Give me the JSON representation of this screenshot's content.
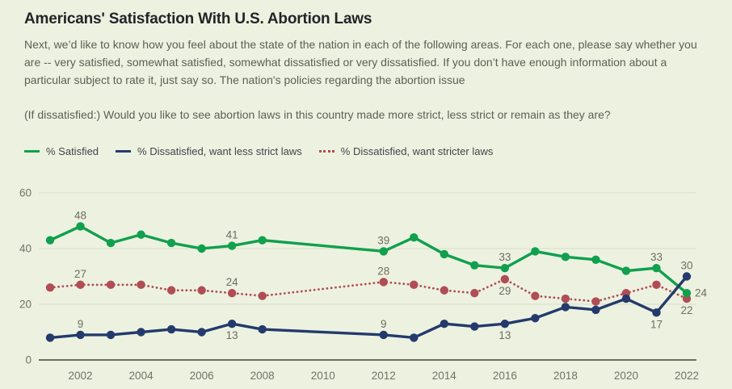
{
  "page": {
    "background": "#edf2e0"
  },
  "header": {
    "title": "Americans' Satisfaction With U.S. Abortion Laws",
    "description": "Next, we’d like to know how you feel about the state of the nation in each of the following areas. For each one, please say whether you are -- very satisfied, somewhat satisfied, somewhat dissatisfied or very dissatisfied. If you don’t have enough information about a particular subject to rate it, just say so. The nation's policies regarding the abortion issue",
    "followup": "(If dissatisfied:) Would you like to see abortion laws in this country made more strict, less strict or remain as they are?"
  },
  "legend": [
    {
      "label": "% Satisfied",
      "color": "#10a04e",
      "style": "solid"
    },
    {
      "label": "% Dissatisfied, want less strict laws",
      "color": "#243a6d",
      "style": "solid"
    },
    {
      "label": "% Dissatisfied, want stricter laws",
      "color": "#b04d55",
      "style": "dotted"
    }
  ],
  "chart_data": {
    "type": "line",
    "title": "Americans' Satisfaction With U.S. Abortion Laws",
    "xlabel": "",
    "ylabel": "",
    "ylim": [
      0,
      60
    ],
    "yticks": [
      0,
      20,
      40,
      60
    ],
    "xticks": [
      2002,
      2004,
      2006,
      2008,
      2010,
      2012,
      2014,
      2016,
      2018,
      2020,
      2022
    ],
    "grid": true,
    "legend_position": "top",
    "note": "no polls 2009-2011; straight segment connects 2008 and 2012",
    "x": [
      2001,
      2002,
      2003,
      2004,
      2005,
      2006,
      2007,
      2008,
      2012,
      2013,
      2014,
      2015,
      2016,
      2017,
      2018,
      2019,
      2020,
      2021,
      2022
    ],
    "series": [
      {
        "name": "% Dissatisfied, want stricter laws",
        "color": "#b04d55",
        "line": "dotted",
        "values": [
          26,
          27,
          27,
          27,
          25,
          25,
          24,
          23,
          28,
          27,
          25,
          24,
          29,
          23,
          22,
          21,
          24,
          27,
          22
        ],
        "point_labels": [
          {
            "x": 2002,
            "pos": "above"
          },
          {
            "x": 2007,
            "pos": "above"
          },
          {
            "x": 2012,
            "pos": "above"
          },
          {
            "x": 2016,
            "pos": "below"
          },
          {
            "x": 2022,
            "pos": "below"
          }
        ]
      },
      {
        "name": "% Satisfied",
        "color": "#10a04e",
        "line": "solid",
        "values": [
          43,
          48,
          42,
          45,
          42,
          40,
          41,
          43,
          39,
          44,
          38,
          34,
          33,
          39,
          37,
          36,
          32,
          33,
          24
        ],
        "point_labels": [
          {
            "x": 2002,
            "pos": "above"
          },
          {
            "x": 2007,
            "pos": "above"
          },
          {
            "x": 2012,
            "pos": "above"
          },
          {
            "x": 2016,
            "pos": "above"
          },
          {
            "x": 2021,
            "pos": "above"
          },
          {
            "x": 2022,
            "pos": "right"
          }
        ]
      },
      {
        "name": "% Dissatisfied, want less strict laws",
        "color": "#243a6d",
        "line": "solid",
        "values": [
          8,
          9,
          9,
          10,
          11,
          10,
          13,
          11,
          9,
          8,
          13,
          12,
          13,
          15,
          19,
          18,
          22,
          17,
          30
        ],
        "point_labels": [
          {
            "x": 2002,
            "pos": "above"
          },
          {
            "x": 2007,
            "pos": "below"
          },
          {
            "x": 2012,
            "pos": "above"
          },
          {
            "x": 2016,
            "pos": "below"
          },
          {
            "x": 2021,
            "pos": "below"
          },
          {
            "x": 2022,
            "pos": "above"
          }
        ]
      }
    ]
  }
}
